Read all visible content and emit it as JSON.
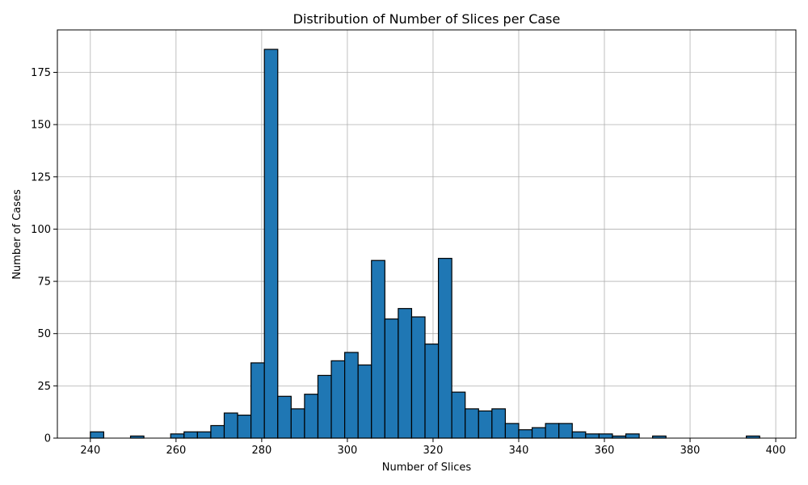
{
  "chart_data": {
    "type": "bar",
    "title": "Distribution of Number of Slices per Case",
    "xlabel": "Number of Slices",
    "ylabel": "Number of Cases",
    "xlim": [
      232.3,
      404.7
    ],
    "ylim": [
      0,
      195.3
    ],
    "xticks": [
      240,
      260,
      280,
      300,
      320,
      340,
      360,
      380,
      400
    ],
    "yticks": [
      0,
      25,
      50,
      75,
      100,
      125,
      150,
      175
    ],
    "grid": true,
    "bar_color": "#1f77b4",
    "edge_color": "#000000",
    "bin_start": 240,
    "bin_width": 3.125,
    "values": [
      3,
      0,
      0,
      1,
      0,
      0,
      2,
      3,
      3,
      6,
      12,
      11,
      36,
      186,
      20,
      14,
      21,
      30,
      37,
      41,
      35,
      85,
      57,
      62,
      58,
      45,
      86,
      22,
      14,
      13,
      14,
      7,
      4,
      5,
      7,
      7,
      3,
      2,
      2,
      1,
      2,
      0,
      1,
      0,
      0,
      0,
      0,
      0,
      0,
      1
    ]
  }
}
